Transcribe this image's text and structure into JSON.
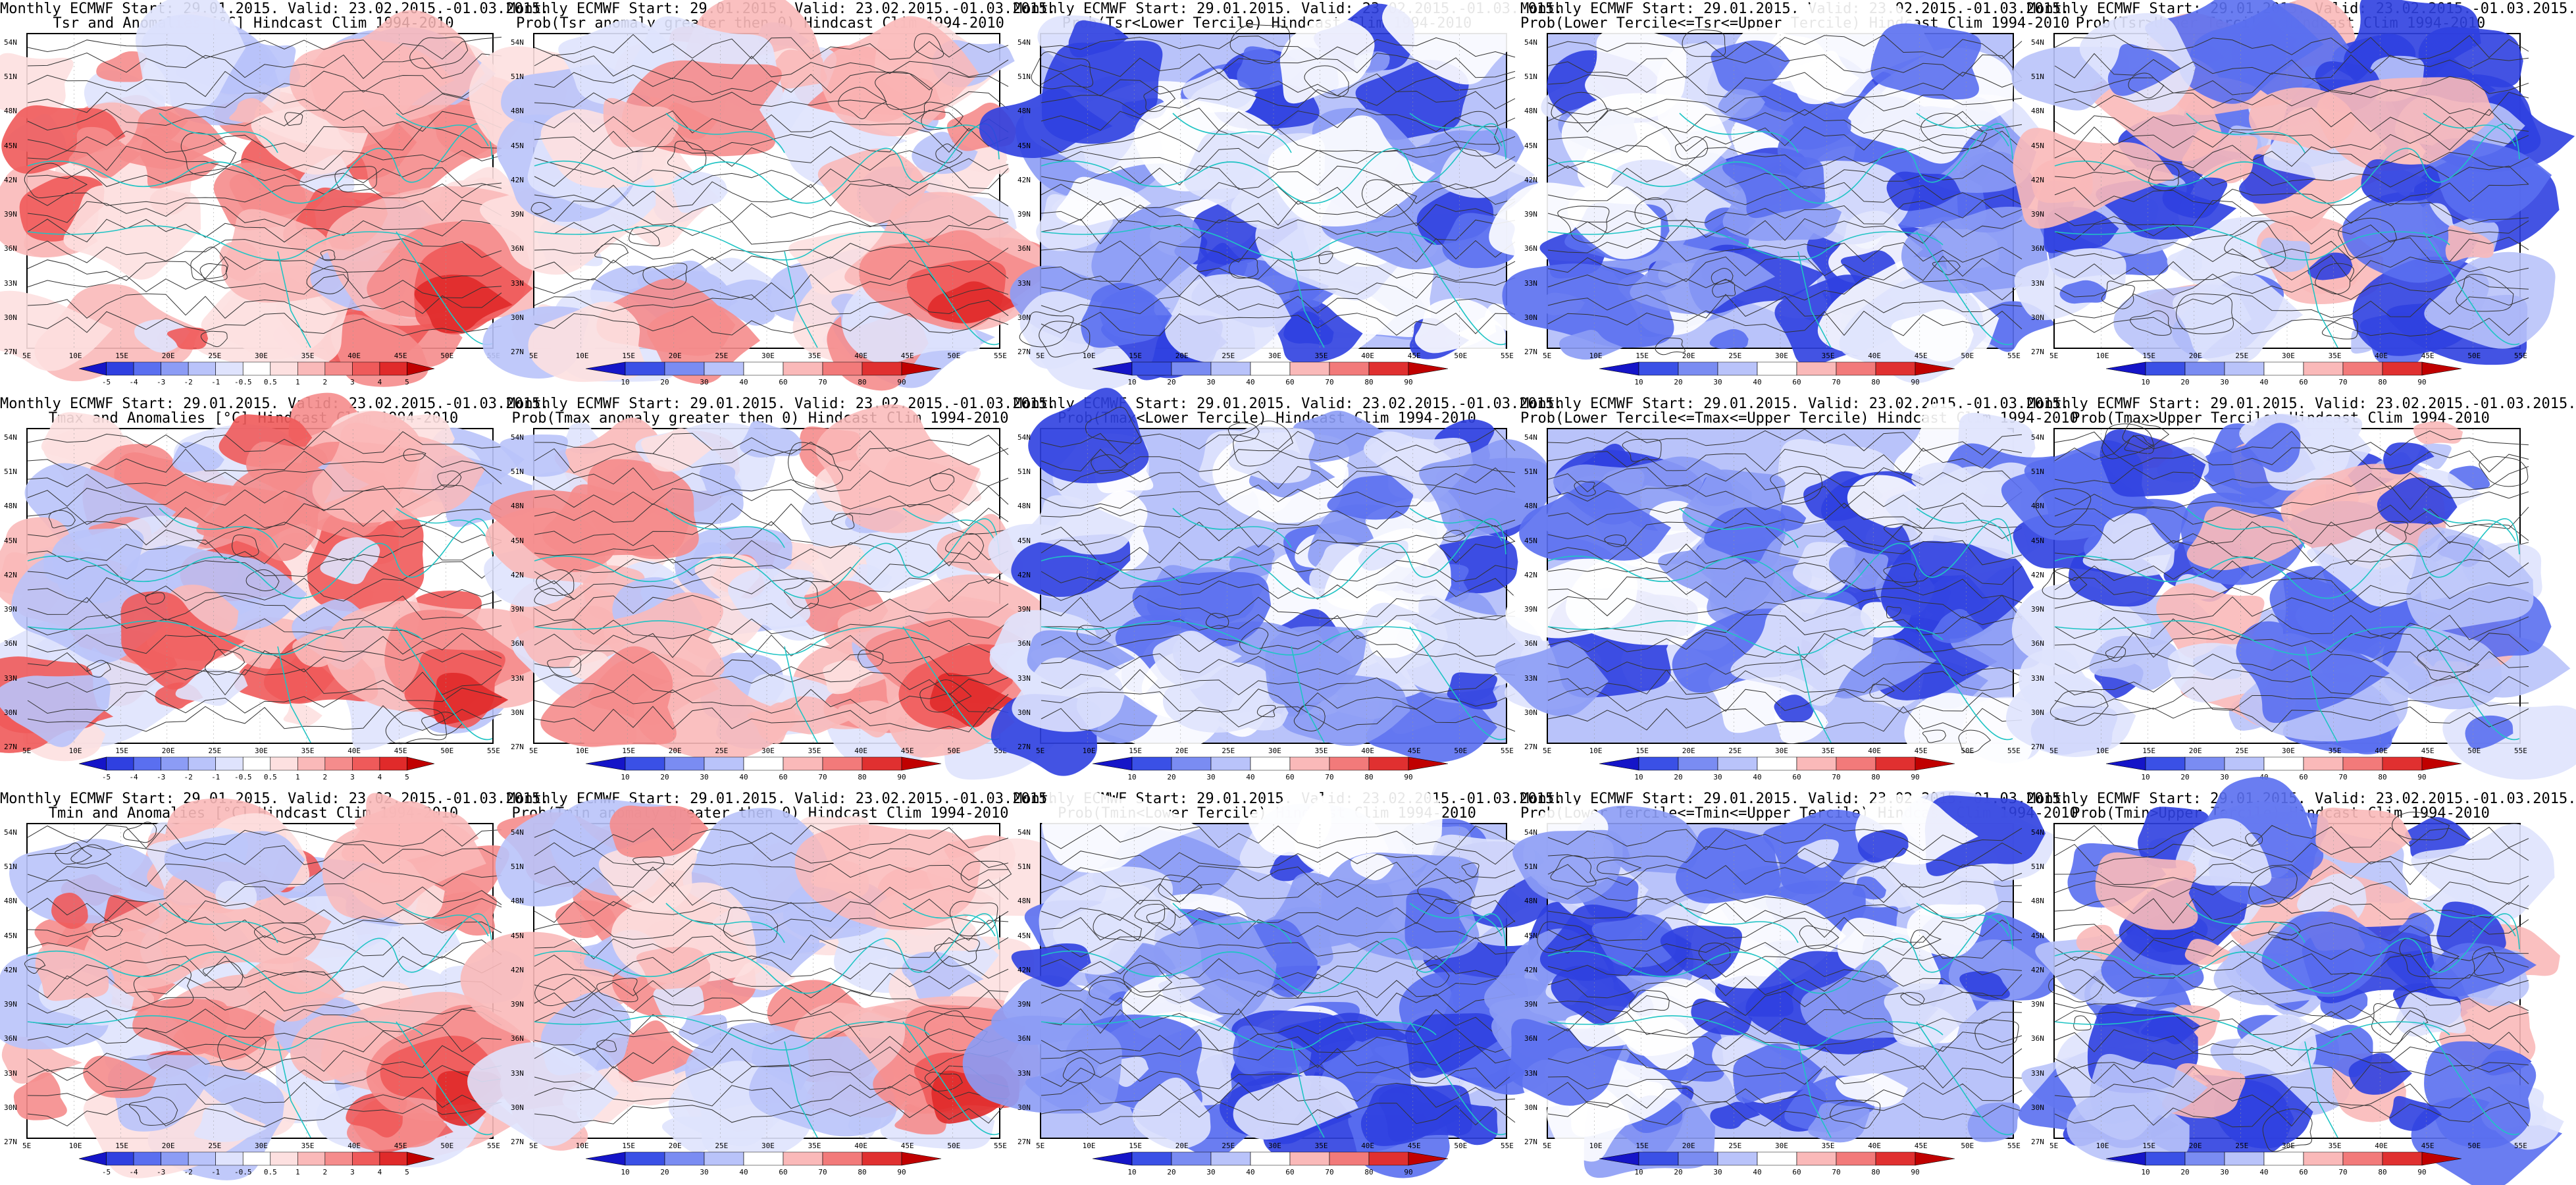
{
  "panels": [
    {
      "id": "tsr-anom",
      "line1": "Monthly ECMWF Start: 29.01.2015. Valid: 23.02.2015.-01.03.2015.",
      "line2": "Tsr and Anomalies [°C] Hindcast Clim 1994-2010",
      "kind": "anom"
    },
    {
      "id": "tsr-pgt0",
      "line1": "Monthly ECMWF Start: 29.01.2015. Valid: 23.02.2015.-01.03.2015.",
      "line2": "Prob(Tsr anomaly greater then 0) Hindcast Clim 1994-2010",
      "kind": "pgt0"
    },
    {
      "id": "tsr-lower",
      "line1": "Monthly ECMWF Start: 29.01.2015. Valid: 23.02.2015.-01.03.2015.",
      "line2": "Prob(Tsr<Lower Tercile) Hindcast Clim 1994-2010",
      "kind": "lower"
    },
    {
      "id": "tsr-middle",
      "line1": "Monthly ECMWF Start: 29.01.2015. Valid: 23.02.2015.-01.03.2015.",
      "line2": "Prob(Lower Tercile<=Tsr<=Upper Tercile) Hindcast Clim 1994-2010",
      "kind": "middle"
    },
    {
      "id": "tsr-upper",
      "line1": "Monthly ECMWF Start: 29.01.2015. Valid: 23.02.2015.-01.03.2015.",
      "line2": "Prob(Tsr>Upper Tercile) Hindcast Clim 1994-2010",
      "kind": "upper"
    },
    {
      "id": "tmax-anom",
      "line1": "Monthly ECMWF Start: 29.01.2015. Valid: 23.02.2015.-01.03.2015.",
      "line2": "Tmax and Anomalies [°C] Hindcast Clim 1994-2010",
      "kind": "anom"
    },
    {
      "id": "tmax-pgt0",
      "line1": "Monthly ECMWF Start: 29.01.2015. Valid: 23.02.2015.-01.03.2015.",
      "line2": "Prob(Tmax anomaly greater then 0) Hindcast Clim 1994-2010",
      "kind": "pgt0"
    },
    {
      "id": "tmax-lower",
      "line1": "Monthly ECMWF Start: 29.01.2015. Valid: 23.02.2015.-01.03.2015.",
      "line2": "Prob(Tmax<Lower Tercile) Hindcast Clim 1994-2010",
      "kind": "lower"
    },
    {
      "id": "tmax-middle",
      "line1": "Monthly ECMWF Start: 29.01.2015. Valid: 23.02.2015.-01.03.2015.",
      "line2": "Prob(Lower Tercile<=Tmax<=Upper Tercile) Hindcast Clim 1994-2010",
      "kind": "middle"
    },
    {
      "id": "tmax-upper",
      "line1": "Monthly ECMWF Start: 29.01.2015. Valid: 23.02.2015.-01.03.2015.",
      "line2": "Prob(Tmax>Upper Tercile) Hindcast Clim 1994-2010",
      "kind": "upper"
    },
    {
      "id": "tmin-anom",
      "line1": "Monthly ECMWF Start: 29.01.2015. Valid: 23.02.2015.-01.03.2015.",
      "line2": "Tmin and Anomalies [°C] Hindcast Clim 1994-2010",
      "kind": "anom"
    },
    {
      "id": "tmin-pgt0",
      "line1": "Monthly ECMWF Start: 29.01.2015. Valid: 23.02.2015.-01.03.2015.",
      "line2": "Prob(Tmin anomaly greater then 0) Hindcast Clim 1994-2010",
      "kind": "pgt0"
    },
    {
      "id": "tmin-lower",
      "line1": "Monthly ECMWF Start: 29.01.2015. Valid: 23.02.2015.-01.03.2015.",
      "line2": "Prob(Tmin<Lower Tercile) Hindcast Clim 1994-2010",
      "kind": "lower"
    },
    {
      "id": "tmin-middle",
      "line1": "Monthly ECMWF Start: 29.01.2015. Valid: 23.02.2015.-01.03.2015.",
      "line2": "Prob(Lower Tercile<=Tmin<=Upper Tercile) Hindcast Clim 1994-2010",
      "kind": "middle"
    },
    {
      "id": "tmin-upper",
      "line1": "Monthly ECMWF Start: 29.01.2015. Valid: 23.02.2015.-01.03.2015.",
      "line2": "Prob(Tmin>Upper Tercile) Hindcast Clim 1994-2010",
      "kind": "upper"
    }
  ],
  "lat_labels": [
    "54N",
    "51N",
    "48N",
    "45N",
    "42N",
    "39N",
    "36N",
    "33N",
    "30N",
    "27N"
  ],
  "lon_labels": [
    "5E",
    "10E",
    "15E",
    "20E",
    "25E",
    "30E",
    "35E",
    "40E",
    "45E",
    "50E",
    "55E"
  ],
  "colorbars": {
    "anom": {
      "labels": [
        "-5",
        "-4",
        "-3",
        "-2",
        "-1",
        "-0.5",
        "0.5",
        "1",
        "2",
        "3",
        "4",
        "5"
      ],
      "colors": [
        "#1515c8",
        "#2f40e0",
        "#5a6ff0",
        "#8c9cf5",
        "#b9c3fa",
        "#dfe3fd",
        "#ffffff",
        "#fde0e0",
        "#fab9b9",
        "#f58c8c",
        "#ef5a5a",
        "#e02a2a",
        "#c00000"
      ]
    },
    "prob": {
      "labels": [
        "10",
        "20",
        "30",
        "40",
        "60",
        "70",
        "80",
        "90"
      ],
      "colors": [
        "#1515c8",
        "#3a50e6",
        "#7a8cf2",
        "#b9c3fa",
        "#ffffff",
        "#fab9b9",
        "#f27a7a",
        "#e03030",
        "#c00000"
      ]
    }
  },
  "map_palette": {
    "anom": [
      "#ffffff",
      "#fde0e0",
      "#fab9b9",
      "#f58c8c",
      "#ef5a5a",
      "#dfe3fd",
      "#b9c3fa"
    ],
    "pgt0": [
      "#ffffff",
      "#fde0e0",
      "#fab9b9",
      "#f58c8c",
      "#dfe3fd",
      "#b9c3fa"
    ],
    "lower": [
      "#b9c3fa",
      "#8c9cf5",
      "#5a6ff0",
      "#ffffff",
      "#dfe3fd",
      "#2f40e0"
    ],
    "middle": [
      "#b9c3fa",
      "#8c9cf5",
      "#5a6ff0",
      "#ffffff",
      "#dfe3fd",
      "#2f40e0"
    ],
    "upper": [
      "#ffffff",
      "#dfe3fd",
      "#b9c3fa",
      "#5a6ff0",
      "#2f40e0",
      "#fab9b9"
    ]
  },
  "coast_color": "#1fc4c4",
  "contour_color": "#333333"
}
